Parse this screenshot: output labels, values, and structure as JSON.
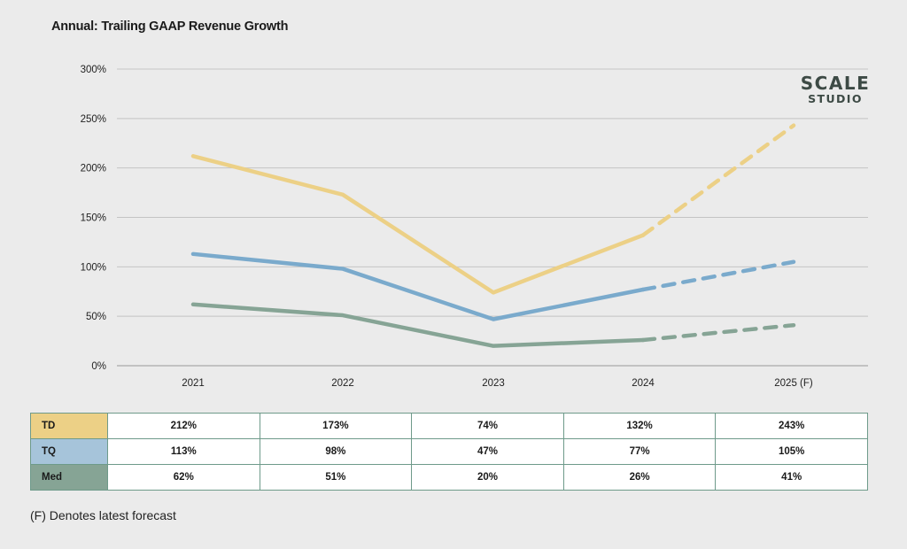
{
  "chart_data": {
    "type": "line",
    "title": "Annual: Trailing GAAP Revenue Growth",
    "categories": [
      "2021",
      "2022",
      "2023",
      "2024",
      "2025 (F)"
    ],
    "ylim": [
      0,
      300
    ],
    "yticks": [
      0,
      50,
      100,
      150,
      200,
      250,
      300
    ],
    "ytick_labels": [
      "0%",
      "50%",
      "100%",
      "150%",
      "200%",
      "250%",
      "300%"
    ],
    "grid": true,
    "forecast_from_index": 3,
    "series": [
      {
        "name": "TD",
        "color": "#ecd086",
        "values": [
          212,
          173,
          74,
          132,
          243
        ],
        "labels": [
          "212%",
          "173%",
          "74%",
          "132%",
          "243%"
        ]
      },
      {
        "name": "TQ",
        "color": "#7aaacc",
        "values": [
          113,
          98,
          47,
          77,
          105
        ],
        "labels": [
          "113%",
          "98%",
          "47%",
          "77%",
          "105%"
        ]
      },
      {
        "name": "Med",
        "color": "#86a495",
        "values": [
          62,
          51,
          20,
          26,
          41
        ],
        "labels": [
          "62%",
          "51%",
          "20%",
          "26%",
          "41%"
        ]
      }
    ]
  },
  "table": {
    "row_label_colors": [
      "#ecd086",
      "#a6c4da",
      "#86a495"
    ]
  },
  "logo": {
    "line1": "SCALE",
    "line2": "STUDIO"
  },
  "footnote": "(F) Denotes latest forecast"
}
